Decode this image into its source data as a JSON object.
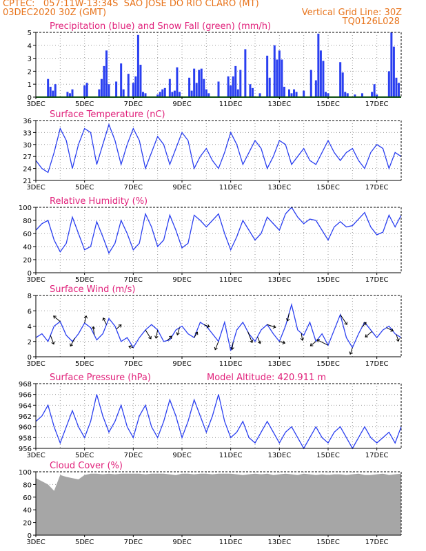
{
  "header": {
    "line1_left": "CPTEC:   057:11W-13:34S  SAO JOSE DO RIO CLARO (MT)",
    "line2_left": "03DEC2020 30Z (GMT)",
    "line2_right": "Vertical Grid Line: 30Z",
    "line3_right": "TQ0126L028"
  },
  "colors": {
    "header": "#e8741c",
    "title": "#e0207a",
    "series": "#2a3ff0",
    "snow": "#1a9a1a",
    "cloud": "#a6a6a6",
    "grid": "#9a9a9a"
  },
  "x_ticks": [
    "3DEC",
    "5DEC",
    "7DEC",
    "9DEC",
    "11DEC",
    "13DEC",
    "15DEC",
    "17DEC"
  ],
  "chart_data": [
    {
      "type": "bar",
      "title": "Precipitation (blue) and Snow Fall (green) (mm/h)",
      "ylim": [
        0,
        5
      ],
      "yticks": [
        "0",
        "1",
        "2",
        "3",
        "4",
        "5"
      ],
      "grid": true,
      "series": [
        {
          "name": "Precipitation",
          "x": [
            3.5,
            3.6,
            3.7,
            3.8,
            4.3,
            4.4,
            4.5,
            5.0,
            5.1,
            5.6,
            5.7,
            5.8,
            5.9,
            6.0,
            6.3,
            6.5,
            6.6,
            6.8,
            7.0,
            7.1,
            7.2,
            7.3,
            7.4,
            7.5,
            8.0,
            8.1,
            8.2,
            8.3,
            8.5,
            8.6,
            8.7,
            8.8,
            8.9,
            9.3,
            9.4,
            9.5,
            9.6,
            9.7,
            9.8,
            9.9,
            10.0,
            10.1,
            10.5,
            10.9,
            11.0,
            11.1,
            11.2,
            11.3,
            11.4,
            11.6,
            11.8,
            11.9,
            12.2,
            12.5,
            12.6,
            12.8,
            12.9,
            13.0,
            13.1,
            13.2,
            13.4,
            13.5,
            13.6,
            13.7,
            14.0,
            14.3,
            14.5,
            14.6,
            14.7,
            14.8,
            14.9,
            15.0,
            15.5,
            15.6,
            15.7,
            15.8,
            16.1,
            16.4,
            16.8,
            16.9,
            17.0,
            17.5,
            17.6,
            17.7,
            17.8,
            17.9
          ],
          "values": [
            1.4,
            0.8,
            0.5,
            1.0,
            0.4,
            0.3,
            0.6,
            0.9,
            1.1,
            0.6,
            1.4,
            2.4,
            3.6,
            1.0,
            1.2,
            2.6,
            0.6,
            1.8,
            1.1,
            1.6,
            4.8,
            2.5,
            0.4,
            0.3,
            0.2,
            0.4,
            0.6,
            0.7,
            1.4,
            0.4,
            0.5,
            2.3,
            0.4,
            1.5,
            0.5,
            2.2,
            1.1,
            2.1,
            2.2,
            1.4,
            0.6,
            0.3,
            1.2,
            1.6,
            0.9,
            1.6,
            2.4,
            0.6,
            2.1,
            3.7,
            1.0,
            0.7,
            0.3,
            3.2,
            1.5,
            4.0,
            2.9,
            3.6,
            2.9,
            0.8,
            0.6,
            0.3,
            0.6,
            0.4,
            0.5,
            2.1,
            1.3,
            4.9,
            3.6,
            2.8,
            0.4,
            0.3,
            2.7,
            1.9,
            0.4,
            0.3,
            0.2,
            0.3,
            0.4,
            1.0,
            0.2,
            2.0,
            5.0,
            3.9,
            1.5,
            1.1
          ]
        },
        {
          "name": "Snow Fall",
          "x": [
            3.0,
            18.0
          ],
          "values": [
            0,
            0
          ]
        }
      ]
    },
    {
      "type": "line",
      "title": "Surface Temperature (nC)",
      "ylim": [
        21,
        36
      ],
      "yticks": [
        "21",
        "24",
        "27",
        "30",
        "33",
        "36"
      ],
      "grid": true,
      "series": [
        {
          "name": "Temperature",
          "x": [
            3.0,
            3.25,
            3.5,
            3.75,
            4.0,
            4.25,
            4.5,
            4.75,
            5.0,
            5.25,
            5.5,
            5.75,
            6.0,
            6.25,
            6.5,
            6.75,
            7.0,
            7.25,
            7.5,
            7.75,
            8.0,
            8.25,
            8.5,
            8.75,
            9.0,
            9.25,
            9.5,
            9.75,
            10.0,
            10.25,
            10.5,
            10.75,
            11.0,
            11.25,
            11.5,
            11.75,
            12.0,
            12.25,
            12.5,
            12.75,
            13.0,
            13.25,
            13.5,
            13.75,
            14.0,
            14.25,
            14.5,
            14.75,
            15.0,
            15.25,
            15.5,
            15.75,
            16.0,
            16.25,
            16.5,
            16.75,
            17.0,
            17.25,
            17.5,
            17.75,
            18.0
          ],
          "values": [
            26,
            24,
            23,
            28,
            34,
            31,
            24,
            30,
            34,
            33,
            25,
            30,
            35,
            31,
            25,
            30,
            34,
            31,
            24,
            28,
            32,
            30,
            25,
            29,
            33,
            31,
            24,
            27,
            29,
            26,
            24,
            28,
            33,
            30,
            25,
            28,
            31,
            29,
            24,
            27,
            31,
            30,
            25,
            27,
            29,
            26,
            25,
            28,
            31,
            28,
            26,
            28,
            29,
            26,
            24,
            28,
            30,
            29,
            24,
            28,
            27
          ]
        }
      ]
    },
    {
      "type": "line",
      "title": "Relative Humidity (%)",
      "ylim": [
        0,
        100
      ],
      "yticks": [
        "0",
        "20",
        "40",
        "60",
        "80",
        "100"
      ],
      "grid": true,
      "series": [
        {
          "name": "Relative Humidity",
          "x": [
            3.0,
            3.25,
            3.5,
            3.75,
            4.0,
            4.25,
            4.5,
            4.75,
            5.0,
            5.25,
            5.5,
            5.75,
            6.0,
            6.25,
            6.5,
            6.75,
            7.0,
            7.25,
            7.5,
            7.75,
            8.0,
            8.25,
            8.5,
            8.75,
            9.0,
            9.25,
            9.5,
            9.75,
            10.0,
            10.25,
            10.5,
            10.75,
            11.0,
            11.25,
            11.5,
            11.75,
            12.0,
            12.25,
            12.5,
            12.75,
            13.0,
            13.25,
            13.5,
            13.75,
            14.0,
            14.25,
            14.5,
            14.75,
            15.0,
            15.25,
            15.5,
            15.75,
            16.0,
            16.25,
            16.5,
            16.75,
            17.0,
            17.25,
            17.5,
            17.75,
            18.0
          ],
          "values": [
            65,
            75,
            80,
            50,
            32,
            45,
            85,
            60,
            35,
            40,
            78,
            55,
            30,
            45,
            80,
            60,
            35,
            45,
            90,
            70,
            40,
            50,
            88,
            65,
            38,
            45,
            88,
            80,
            70,
            80,
            90,
            60,
            35,
            55,
            80,
            65,
            50,
            60,
            85,
            75,
            65,
            90,
            100,
            85,
            75,
            82,
            80,
            65,
            50,
            70,
            78,
            70,
            72,
            82,
            92,
            70,
            58,
            62,
            88,
            70,
            88
          ]
        }
      ]
    },
    {
      "type": "line",
      "title": "Surface Wind (m/s)",
      "ylim": [
        0,
        8
      ],
      "yticks": [
        "0",
        "2",
        "4",
        "6",
        "8"
      ],
      "grid": true,
      "series": [
        {
          "name": "Wind speed",
          "x": [
            3.0,
            3.25,
            3.5,
            3.75,
            4.0,
            4.25,
            4.5,
            4.75,
            5.0,
            5.25,
            5.5,
            5.75,
            6.0,
            6.25,
            6.5,
            6.75,
            7.0,
            7.25,
            7.5,
            7.75,
            8.0,
            8.25,
            8.5,
            8.75,
            9.0,
            9.25,
            9.5,
            9.75,
            10.0,
            10.25,
            10.5,
            10.75,
            11.0,
            11.25,
            11.5,
            11.75,
            12.0,
            12.25,
            12.5,
            12.75,
            13.0,
            13.25,
            13.5,
            13.75,
            14.0,
            14.25,
            14.5,
            14.75,
            15.0,
            15.25,
            15.5,
            15.75,
            16.0,
            16.25,
            16.5,
            16.75,
            17.0,
            17.25,
            17.5,
            17.75,
            18.0
          ],
          "values": [
            2.5,
            3.0,
            2.0,
            4.0,
            4.6,
            2.8,
            2.0,
            3.0,
            4.4,
            3.8,
            2.2,
            3.0,
            5.0,
            4.0,
            2.0,
            2.5,
            1.2,
            2.5,
            3.5,
            4.2,
            3.5,
            2.0,
            2.2,
            3.5,
            4.0,
            3.0,
            2.5,
            4.5,
            4.0,
            3.0,
            2.0,
            4.5,
            0.8,
            3.5,
            4.5,
            3.0,
            2.0,
            3.5,
            4.2,
            3.0,
            2.0,
            4.0,
            6.8,
            3.5,
            2.8,
            4.5,
            2.0,
            3.0,
            1.5,
            3.5,
            5.5,
            2.5,
            1.2,
            3.0,
            4.5,
            3.5,
            2.5,
            3.5,
            4.0,
            3.0,
            2.5
          ]
        }
      ],
      "vectors": [
        {
          "x": 3.6,
          "u": 0.6,
          "v": -1.6
        },
        {
          "x": 4.0,
          "u": -1.2,
          "v": 1.0
        },
        {
          "x": 4.6,
          "u": -0.8,
          "v": -1.4
        },
        {
          "x": 5.0,
          "u": 0.3,
          "v": 1.3
        },
        {
          "x": 5.4,
          "u": -0.2,
          "v": 1.5
        },
        {
          "x": 5.9,
          "u": -0.6,
          "v": 1.2
        },
        {
          "x": 6.3,
          "u": 0.9,
          "v": 0.8
        },
        {
          "x": 7.0,
          "u": -0.8,
          "v": 0.2
        },
        {
          "x": 7.5,
          "u": 1.0,
          "v": -1.6
        },
        {
          "x": 8.0,
          "u": -0.3,
          "v": -1.5
        },
        {
          "x": 8.4,
          "u": 0.8,
          "v": 0.8
        },
        {
          "x": 8.9,
          "u": -0.4,
          "v": -1.3
        },
        {
          "x": 9.5,
          "u": 0.6,
          "v": 1.0
        },
        {
          "x": 9.9,
          "u": 1.0,
          "v": -0.4
        },
        {
          "x": 10.5,
          "u": -0.6,
          "v": -1.5
        },
        {
          "x": 11.1,
          "u": -0.2,
          "v": -1.3
        },
        {
          "x": 11.7,
          "u": 0.8,
          "v": -2.0
        },
        {
          "x": 12.1,
          "u": 0.5,
          "v": -1.2
        },
        {
          "x": 12.5,
          "u": 1.5,
          "v": -0.5
        },
        {
          "x": 13.0,
          "u": 1.0,
          "v": -0.3
        },
        {
          "x": 13.4,
          "u": -0.3,
          "v": -1.4
        },
        {
          "x": 13.9,
          "u": 0.2,
          "v": -1.3
        },
        {
          "x": 14.5,
          "u": -1.0,
          "v": -0.8
        },
        {
          "x": 15.0,
          "u": -2.0,
          "v": 1.0
        },
        {
          "x": 15.5,
          "u": 1.2,
          "v": -1.8
        },
        {
          "x": 16.0,
          "u": -0.4,
          "v": -1.2
        },
        {
          "x": 16.4,
          "u": 0.7,
          "v": 0.8
        },
        {
          "x": 16.8,
          "u": -1.2,
          "v": -1.0
        },
        {
          "x": 17.4,
          "u": 1.2,
          "v": -0.6
        },
        {
          "x": 17.8,
          "u": 0.4,
          "v": -1.2
        }
      ]
    },
    {
      "type": "line",
      "title": "Surface Pressure (hPa)",
      "subtitle": "Model Altitude: 420.911  m",
      "ylim": [
        956,
        968
      ],
      "yticks": [
        "956",
        "958",
        "960",
        "962",
        "964",
        "966",
        "968"
      ],
      "grid": true,
      "series": [
        {
          "name": "Pressure",
          "x": [
            3.0,
            3.25,
            3.5,
            3.75,
            4.0,
            4.25,
            4.5,
            4.75,
            5.0,
            5.25,
            5.5,
            5.75,
            6.0,
            6.25,
            6.5,
            6.75,
            7.0,
            7.25,
            7.5,
            7.75,
            8.0,
            8.25,
            8.5,
            8.75,
            9.0,
            9.25,
            9.5,
            9.75,
            10.0,
            10.25,
            10.5,
            10.75,
            11.0,
            11.25,
            11.5,
            11.75,
            12.0,
            12.25,
            12.5,
            12.75,
            13.0,
            13.25,
            13.5,
            13.75,
            14.0,
            14.25,
            14.5,
            14.75,
            15.0,
            15.25,
            15.5,
            15.75,
            16.0,
            16.25,
            16.5,
            16.75,
            17.0,
            17.25,
            17.5,
            17.75,
            18.0
          ],
          "values": [
            961,
            962,
            964,
            960,
            957,
            960,
            963,
            960,
            958,
            961,
            966,
            962,
            959,
            961,
            964,
            960,
            958,
            962,
            964,
            960,
            958,
            961,
            965,
            962,
            958,
            961,
            965,
            962,
            959,
            962,
            966,
            961,
            958,
            959,
            961,
            958,
            957,
            959,
            961,
            959,
            957,
            959,
            960,
            958,
            956,
            958,
            960,
            958,
            957,
            959,
            960,
            958,
            956,
            958,
            960,
            958,
            957,
            958,
            959,
            957,
            960
          ]
        }
      ]
    },
    {
      "type": "area",
      "title": "Cloud Cover (%)",
      "ylim": [
        0,
        100
      ],
      "yticks": [
        "0",
        "20",
        "40",
        "60",
        "80",
        "100"
      ],
      "grid": true,
      "series": [
        {
          "name": "Cloud Cover",
          "x": [
            3.0,
            3.25,
            3.5,
            3.75,
            4.0,
            4.25,
            4.5,
            4.75,
            5.0,
            5.25,
            5.5,
            5.75,
            6.0,
            6.25,
            6.5,
            6.75,
            7.0,
            7.25,
            7.5,
            7.75,
            8.0,
            8.25,
            8.5,
            8.75,
            9.0,
            9.25,
            9.5,
            9.75,
            10.0,
            10.25,
            10.5,
            10.75,
            11.0,
            11.25,
            11.5,
            11.75,
            12.0,
            12.25,
            12.5,
            12.75,
            13.0,
            13.25,
            13.5,
            13.75,
            14.0,
            14.25,
            14.5,
            14.75,
            15.0,
            15.25,
            15.5,
            15.75,
            16.0,
            16.25,
            16.5,
            16.75,
            17.0,
            17.25,
            17.5,
            17.75,
            18.0
          ],
          "values": [
            90,
            85,
            80,
            70,
            95,
            92,
            90,
            88,
            95,
            97,
            97,
            96,
            97,
            96,
            97,
            97,
            97,
            97,
            96,
            97,
            97,
            97,
            96,
            95,
            97,
            97,
            96,
            97,
            97,
            96,
            97,
            97,
            97,
            96,
            95,
            96,
            97,
            96,
            97,
            95,
            96,
            97,
            96,
            95,
            97,
            96,
            95,
            96,
            95,
            96,
            96,
            95,
            96,
            97,
            95,
            95,
            96,
            97,
            95,
            96,
            97
          ]
        }
      ]
    }
  ]
}
